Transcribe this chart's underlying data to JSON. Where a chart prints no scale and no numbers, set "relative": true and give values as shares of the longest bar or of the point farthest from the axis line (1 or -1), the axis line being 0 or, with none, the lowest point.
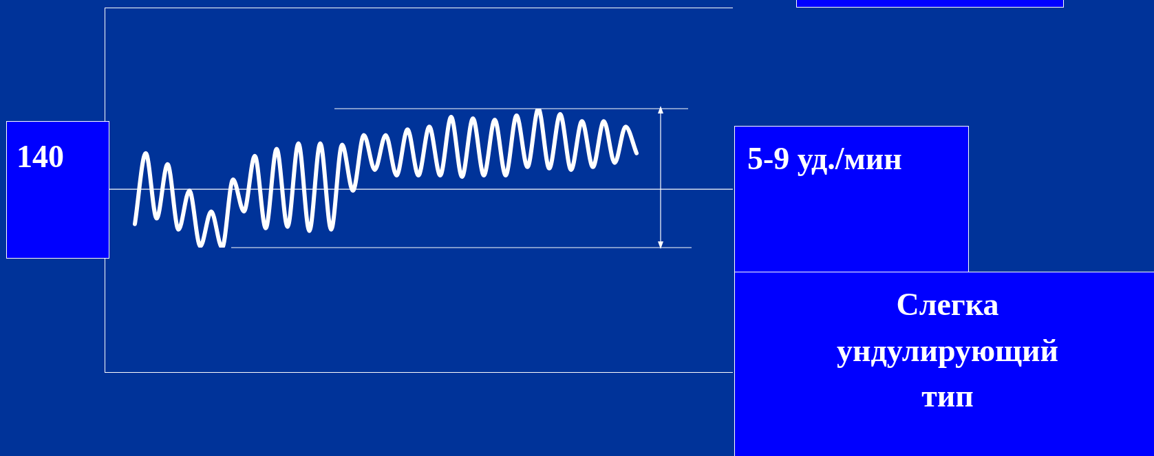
{
  "chart_data": {
    "type": "line",
    "relative": true,
    "categories": [
      null,
      null,
      null,
      null,
      null,
      null,
      null,
      null,
      null,
      null,
      null,
      null,
      null,
      null,
      null,
      null,
      null,
      null,
      null,
      null,
      null,
      null,
      null,
      null,
      null,
      null,
      null,
      null,
      null,
      null,
      null,
      null,
      null,
      null,
      null,
      null,
      null,
      null,
      null,
      null,
      null,
      null,
      null,
      null,
      null,
      null,
      null
    ],
    "series": [
      {
        "color": "#ffffff",
        "values": [
          0.17,
          0.68,
          0.21,
          0.6,
          0.13,
          0.41,
          0.01,
          0.26,
          0,
          0.49,
          0.26,
          0.66,
          0.14,
          0.71,
          0.15,
          0.75,
          0.12,
          0.75,
          0.13,
          0.74,
          0.41,
          0.81,
          0.56,
          0.81,
          0.52,
          0.85,
          0.52,
          0.87,
          0.52,
          0.94,
          0.51,
          0.93,
          0.52,
          0.92,
          0.52,
          0.95,
          0.58,
          1,
          0.57,
          0.96,
          0.56,
          0.91,
          0.58,
          0.91,
          0.61,
          0.87,
          0.68
        ]
      }
    ],
    "ref_lines": [
      {
        "axis": "y",
        "value": 0.42
      },
      {
        "axis": "y",
        "value": 1
      },
      {
        "axis": "y",
        "value": 0
      }
    ],
    "annotations": [
      "140",
      "5-9 уд./мин",
      "Слегка ундулирующий тип"
    ],
    "marker": "none",
    "line_style": "solid",
    "legend": false
  }
}
